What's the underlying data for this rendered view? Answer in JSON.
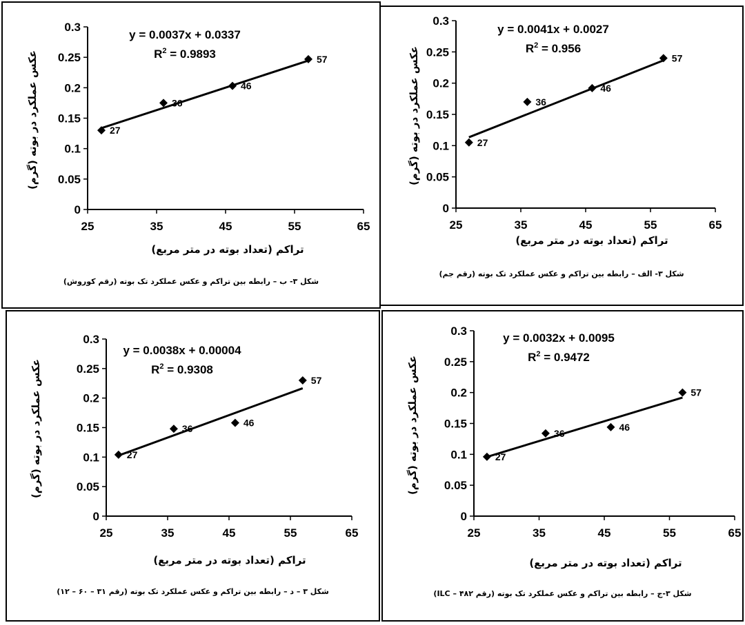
{
  "chart_data": [
    {
      "type": "scatter",
      "equation": "y = 0.0037x + 0.0337",
      "r2_label": "R",
      "r2_value": " = 0.9893",
      "xlabel": "تراکم (تعداد بوته در متر مربع)",
      "ylabel": "عکس عملکرد در بوته (گرم)",
      "caption": "شکل ۳- ب – رابطه بین تراکم و عکس عملکرد تک بوته (رقم کوروش)",
      "xlim": [
        25,
        65
      ],
      "ylim": [
        0,
        0.3
      ],
      "x_ticks": [
        "25",
        "35",
        "45",
        "55",
        "65"
      ],
      "y_ticks": [
        "0",
        "0.05",
        "0.1",
        "0.15",
        "0.2",
        "0.25",
        "0.3"
      ],
      "trendline": {
        "slope": 0.0037,
        "intercept": 0.0337
      },
      "points": [
        {
          "x": 27,
          "y": 0.13,
          "label": "27"
        },
        {
          "x": 36,
          "y": 0.175,
          "label": "36"
        },
        {
          "x": 46,
          "y": 0.203,
          "label": "46"
        },
        {
          "x": 57,
          "y": 0.247,
          "label": "57"
        }
      ]
    },
    {
      "type": "scatter",
      "equation": "y = 0.0041x + 0.0027",
      "r2_label": "R",
      "r2_value": " = 0.956",
      "xlabel": "تراکم (تعداد بوته در متر مربع)",
      "ylabel": "عکس عملکرد در بوته (گرم)",
      "caption": "شکل ۳- الف – رابطه بین تراکم و عکس عملکرد تک بوته (رقم جم)",
      "xlim": [
        25,
        65
      ],
      "ylim": [
        0,
        0.3
      ],
      "x_ticks": [
        "25",
        "35",
        "45",
        "55",
        "65"
      ],
      "y_ticks": [
        "0",
        "0.05",
        "0.1",
        "0.15",
        "0.2",
        "0.25",
        "0.3"
      ],
      "trendline": {
        "slope": 0.0041,
        "intercept": 0.0027
      },
      "points": [
        {
          "x": 27,
          "y": 0.105,
          "label": "27"
        },
        {
          "x": 36,
          "y": 0.17,
          "label": "36"
        },
        {
          "x": 46,
          "y": 0.192,
          "label": "46"
        },
        {
          "x": 57,
          "y": 0.24,
          "label": "57"
        }
      ]
    },
    {
      "type": "scatter",
      "equation": "y = 0.0038x + 0.00004",
      "r2_label": "R",
      "r2_value": " = 0.9308",
      "xlabel": "تراکم (تعداد بوته در متر مربع)",
      "ylabel": "عکس عملکرد در بوته (گرم)",
      "caption": "شکل ۳ – د – رابطه بین تراکم و عکس عملکرد تک بوته (رقم ۳۱ – ۶۰ – ۱۲)",
      "xlim": [
        25,
        65
      ],
      "ylim": [
        0,
        0.3
      ],
      "x_ticks": [
        "25",
        "35",
        "45",
        "55",
        "65"
      ],
      "y_ticks": [
        "0",
        "0.05",
        "0.1",
        "0.15",
        "0.2",
        "0.25",
        "0.3"
      ],
      "trendline": {
        "slope": 0.0038,
        "intercept": 4e-05
      },
      "points": [
        {
          "x": 27,
          "y": 0.104,
          "label": "27"
        },
        {
          "x": 36,
          "y": 0.148,
          "label": "36"
        },
        {
          "x": 46,
          "y": 0.158,
          "label": "46"
        },
        {
          "x": 57,
          "y": 0.23,
          "label": "57"
        }
      ]
    },
    {
      "type": "scatter",
      "equation": "y = 0.0032x + 0.0095",
      "r2_label": "R",
      "r2_value": " = 0.9472",
      "xlabel": "تراکم (تعداد بوته در متر مربع)",
      "ylabel": "عکس عملکرد در بوته (گرم)",
      "caption": "شکل ۳-ج – رابطه بین تراکم و عکس عملکرد تک بوته (رقم ۴۸۲ – ILC)",
      "xlim": [
        25,
        65
      ],
      "ylim": [
        0,
        0.3
      ],
      "x_ticks": [
        "25",
        "35",
        "45",
        "55",
        "65"
      ],
      "y_ticks": [
        "0",
        "0.05",
        "0.1",
        "0.15",
        "0.2",
        "0.25",
        "0.3"
      ],
      "trendline": {
        "slope": 0.0032,
        "intercept": 0.0095
      },
      "points": [
        {
          "x": 27,
          "y": 0.096,
          "label": "27"
        },
        {
          "x": 36,
          "y": 0.134,
          "label": "36"
        },
        {
          "x": 46,
          "y": 0.144,
          "label": "46"
        },
        {
          "x": 57,
          "y": 0.2,
          "label": "57"
        }
      ]
    }
  ]
}
